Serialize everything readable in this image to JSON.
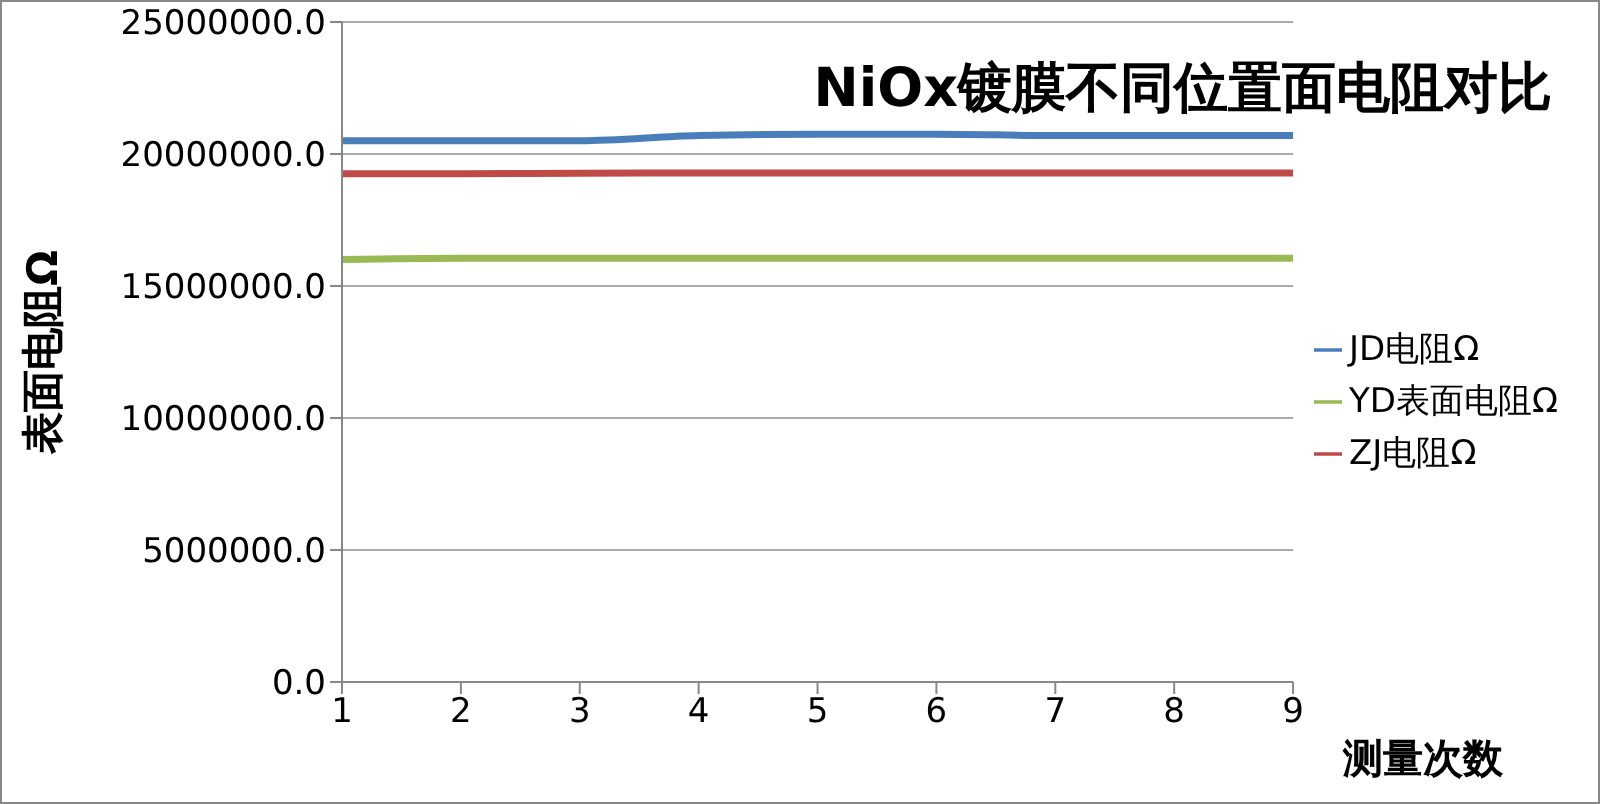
{
  "chart_data": {
    "type": "line",
    "title": "NiOx镀膜不同位置面电阻对比",
    "xlabel": "测量次数",
    "ylabel": "表面电阻Ω",
    "categories": [
      "1",
      "2",
      "3",
      "4",
      "5",
      "6",
      "7",
      "8",
      "9"
    ],
    "series": [
      {
        "name": "JD电阻Ω",
        "color": "#4a7ebb",
        "values": [
          20500000,
          20500000,
          20500000,
          20700000,
          20750000,
          20750000,
          20700000,
          20700000,
          20700000
        ]
      },
      {
        "name": "ZJ电阻Ω",
        "color": "#be4b48",
        "values": [
          19250000,
          19250000,
          19270000,
          19280000,
          19280000,
          19280000,
          19280000,
          19280000,
          19280000
        ]
      },
      {
        "name": "YD表面电阻Ω",
        "color": "#98b954",
        "values": [
          16000000,
          16050000,
          16050000,
          16050000,
          16050000,
          16050000,
          16050000,
          16050000,
          16050000
        ]
      }
    ],
    "ylim": [
      0,
      25000000
    ],
    "yticks": [
      {
        "value": 0,
        "label": "0.0"
      },
      {
        "value": 5000000,
        "label": "5000000.0"
      },
      {
        "value": 10000000,
        "label": "10000000.0"
      },
      {
        "value": 15000000,
        "label": "15000000.0"
      },
      {
        "value": 20000000,
        "label": "20000000.0"
      },
      {
        "value": 25000000,
        "label": "25000000.0"
      }
    ],
    "grid": "y",
    "legend": "right",
    "marker": "none",
    "line_style": "solid"
  }
}
